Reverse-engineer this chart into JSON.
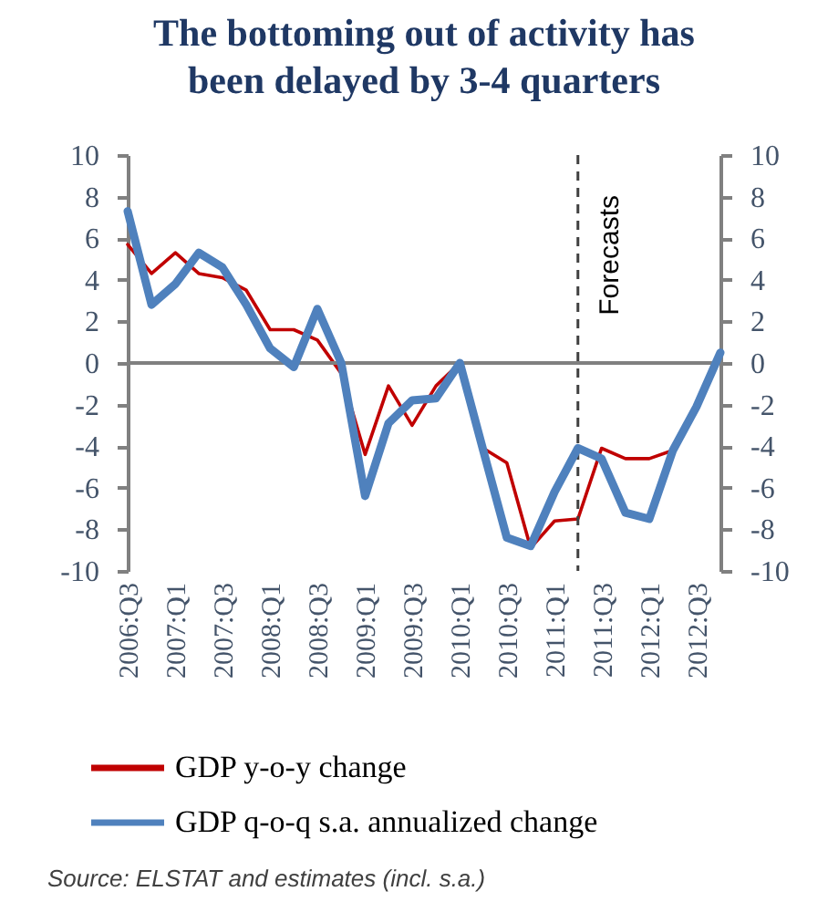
{
  "chart_data": {
    "type": "line",
    "title": "The bottoming out of activity has been delayed by 3-4 quarters",
    "x": [
      "2006-07",
      "2006-10",
      "2007-01",
      "2007-04",
      "2007-07",
      "2007-10",
      "2008-01",
      "2008-04",
      "2008-07",
      "2008-10",
      "2009-01",
      "2009-04",
      "2009-07",
      "2009-10",
      "2010-01",
      "2010-04",
      "2010-07",
      "2010-10",
      "2011-01",
      "2011-04",
      "2011-07",
      "2011-10",
      "2012-01",
      "2012-04",
      "2012-07",
      "2012-10"
    ],
    "series": [
      {
        "name": "GDP y-o-y change",
        "color": "#c00000",
        "values": [
          5.7,
          4.3,
          5.3,
          4.3,
          4.1,
          3.5,
          1.6,
          1.6,
          1.1,
          -0.5,
          -4.4,
          -1.1,
          -3.0,
          -1.1,
          0.0,
          -4.1,
          -4.8,
          -8.9,
          -7.6,
          -7.5,
          -4.1,
          -4.6,
          -4.6,
          -4.2,
          -2.3,
          0.3
        ]
      },
      {
        "name": "GDP q-o-q s.a. annualized change",
        "color": "#4f81bd",
        "axis": "y2",
        "values": [
          7.3,
          2.8,
          3.8,
          5.3,
          4.6,
          2.8,
          0.7,
          -0.2,
          2.6,
          0.0,
          -6.4,
          -2.9,
          -1.8,
          -1.7,
          0.0,
          -4.2,
          -8.4,
          -8.8,
          -6.2,
          -4.1,
          -4.6,
          -7.2,
          -7.5,
          -4.2,
          -2.1,
          0.5
        ]
      }
    ],
    "xlim": [
      "2006-07",
      "2012-10"
    ],
    "xticks": [
      {
        "value": "2006-07",
        "label": "2006:Q3"
      },
      {
        "value": "2007-01",
        "label": "2007:Q1"
      },
      {
        "value": "2007-07",
        "label": "2007:Q3"
      },
      {
        "value": "2008-01",
        "label": "2008:Q1"
      },
      {
        "value": "2008-07",
        "label": "2008:Q3"
      },
      {
        "value": "2009-01",
        "label": "2009:Q1"
      },
      {
        "value": "2009-07",
        "label": "2009:Q3"
      },
      {
        "value": "2010-01",
        "label": "2010:Q1"
      },
      {
        "value": "2010-07",
        "label": "2010:Q3"
      },
      {
        "value": "2011-01",
        "label": "2011:Q1"
      },
      {
        "value": "2011-07",
        "label": "2011:Q3"
      },
      {
        "value": "2012-01",
        "label": "2012:Q1"
      },
      {
        "value": "2012-07",
        "label": "2012:Q3"
      }
    ],
    "ylim": [
      -10,
      10
    ],
    "yticks": [
      -10,
      -8,
      -6,
      -4,
      -2,
      0,
      2,
      4,
      6,
      8,
      10
    ],
    "y2lim": [
      -10,
      10
    ],
    "y2ticks": [
      -10,
      -8,
      -6,
      -4,
      -2,
      0,
      2,
      4,
      6,
      8,
      10
    ],
    "ref_lines": [
      {
        "axis": "y",
        "value": 0,
        "color": "#808080",
        "line_style": "solid"
      },
      {
        "axis": "x",
        "value": "2011-04",
        "label": "Forecasts",
        "color": "#404040",
        "line_style": "dashed"
      }
    ],
    "legend": "bottom",
    "grid": false,
    "marker": "none",
    "line_style": "solid",
    "annotations": [
      "Source: ELSTAT and estimates (incl. s.a.)"
    ]
  }
}
